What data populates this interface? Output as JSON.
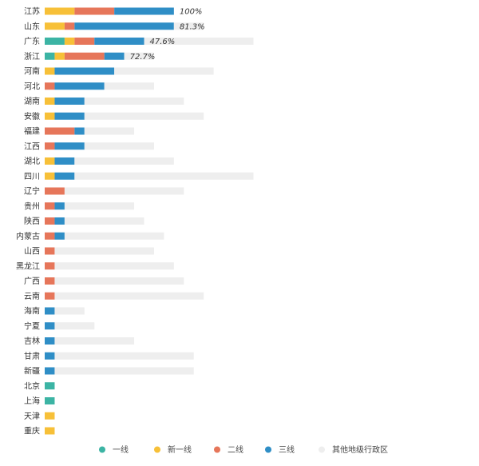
{
  "chart_data": {
    "type": "bar",
    "orientation": "horizontal",
    "stacked": true,
    "categories": [
      "江苏",
      "山东",
      "广东",
      "浙江",
      "河南",
      "河北",
      "湖南",
      "安徽",
      "福建",
      "江西",
      "湖北",
      "四川",
      "辽宁",
      "贵州",
      "陕西",
      "内蒙古",
      "山西",
      "黑龙江",
      "广西",
      "云南",
      "海南",
      "宁夏",
      "吉林",
      "甘肃",
      "新疆",
      "北京",
      "上海",
      "天津",
      "重庆"
    ],
    "series": [
      {
        "name": "一线",
        "color": "#3cb4a4",
        "values": [
          0,
          0,
          2,
          1,
          0,
          0,
          0,
          0,
          0,
          0,
          0,
          0,
          0,
          0,
          0,
          0,
          0,
          0,
          0,
          0,
          0,
          0,
          0,
          0,
          0,
          1,
          1,
          0,
          0
        ]
      },
      {
        "name": "新一线",
        "color": "#f7c038",
        "values": [
          3,
          2,
          1,
          1,
          1,
          0,
          1,
          1,
          0,
          0,
          1,
          1,
          0,
          0,
          0,
          0,
          0,
          0,
          0,
          0,
          0,
          0,
          0,
          0,
          0,
          0,
          0,
          1,
          1
        ]
      },
      {
        "name": "二线",
        "color": "#e6765a",
        "values": [
          4,
          1,
          2,
          4,
          0,
          1,
          0,
          0,
          3,
          1,
          0,
          0,
          2,
          1,
          1,
          1,
          1,
          1,
          1,
          1,
          0,
          0,
          0,
          0,
          0,
          0,
          0,
          0,
          0
        ]
      },
      {
        "name": "三线",
        "color": "#2f8ec6",
        "values": [
          6,
          10,
          5,
          2,
          6,
          5,
          3,
          3,
          1,
          3,
          2,
          2,
          0,
          1,
          1,
          1,
          0,
          0,
          0,
          0,
          1,
          1,
          1,
          1,
          1,
          0,
          0,
          0,
          0
        ]
      },
      {
        "name": "其他地级行政区",
        "color": "#eeeeee",
        "values": [
          0,
          3,
          11,
          3,
          10,
          5,
          10,
          12,
          5,
          7,
          10,
          18,
          12,
          7,
          8,
          10,
          10,
          12,
          13,
          15,
          3,
          4,
          8,
          14,
          14,
          0,
          0,
          0,
          0
        ]
      }
    ],
    "annotations": [
      {
        "category": "江苏",
        "text": "100%"
      },
      {
        "category": "山东",
        "text": "81.3%"
      },
      {
        "category": "广东",
        "text": "47.6%"
      },
      {
        "category": "浙江",
        "text": "72.7%"
      }
    ],
    "legend_position": "bottom",
    "grid": false,
    "title": "",
    "xlabel": "",
    "ylabel": ""
  }
}
